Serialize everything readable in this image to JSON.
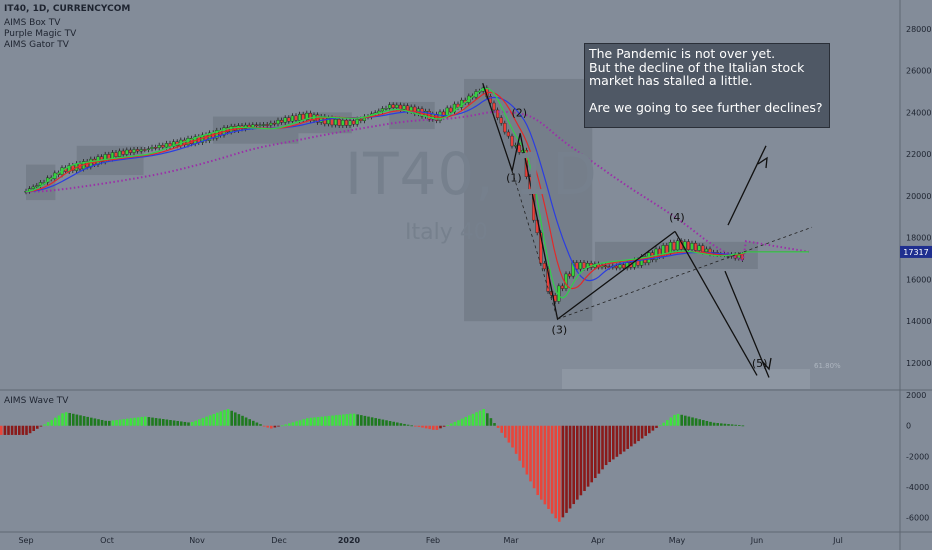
{
  "header": {
    "symbol_line": "IT40, 1D, CURRENCYCOM"
  },
  "indicators": [
    "AIMS Box TV",
    "Purple Magic TV",
    "AIMS Gator TV"
  ],
  "oscillator_title": "AIMS Wave TV",
  "watermark": {
    "symbol": "IT40, 1D",
    "name": "Italy 40"
  },
  "note": {
    "lines": [
      "The Pandemic is not over yet.",
      "But the decline of the Italian stock",
      "market has stalled a little.",
      "",
      "Are we going to see further declines?"
    ]
  },
  "price_tag": "17317",
  "fib_label": "61.80%",
  "colors": {
    "background": "#838c99",
    "up_candle": "#3ad13a",
    "down_candle": "#e8403a",
    "blue_ma": "#2b3de0",
    "red_ma": "#e02a2a",
    "green_ma": "#2fd04a",
    "purple": "#9b2fa8",
    "wave_light_green": "#3fe23f",
    "wave_dark_green": "#1f7a1f",
    "wave_red": "#e8453a",
    "wave_dark_red": "#8a1a1a"
  },
  "chart_data": {
    "type": "candlestick",
    "x_tick_labels": [
      "Sep",
      "Oct",
      "Nov",
      "Dec",
      "2020",
      "Feb",
      "Mar",
      "Apr",
      "May",
      "Jun",
      "Jul"
    ],
    "price_axis": {
      "ticks": [
        12000,
        14000,
        16000,
        18000,
        20000,
        22000,
        24000,
        26000,
        28000
      ],
      "range": [
        10800,
        29000
      ]
    },
    "oscillator_axis": {
      "ticks": [
        2000,
        0,
        -2000,
        -4000,
        -6000
      ],
      "range": [
        -6800,
        2200
      ]
    },
    "price_path": [
      {
        "date": "Sep 1",
        "close": 20200
      },
      {
        "date": "Sep 15",
        "close": 21500
      },
      {
        "date": "Oct 1",
        "close": 21800
      },
      {
        "date": "Oct 15",
        "close": 22000
      },
      {
        "date": "Nov 1",
        "close": 22800
      },
      {
        "date": "Nov 15",
        "close": 23300
      },
      {
        "date": "Dec 1",
        "close": 23200
      },
      {
        "date": "Dec 15",
        "close": 23800
      },
      {
        "date": "Jan 1",
        "close": 23700
      },
      {
        "date": "Jan 15",
        "close": 24200
      },
      {
        "date": "Feb 1",
        "close": 23600
      },
      {
        "date": "Feb 19",
        "close": 25400
      },
      {
        "date": "Mar 1",
        "close": 22500
      },
      {
        "date": "Mar 5",
        "close": 22000
      },
      {
        "date": "Mar 12",
        "close": 16500
      },
      {
        "date": "Mar 16",
        "close": 14600
      },
      {
        "date": "Mar 24",
        "close": 16500
      },
      {
        "date": "Apr 1",
        "close": 16800
      },
      {
        "date": "Apr 15",
        "close": 17000
      },
      {
        "date": "May 1",
        "close": 17400
      },
      {
        "date": "May 15",
        "close": 17100
      },
      {
        "date": "May 27",
        "close": 17317
      }
    ],
    "wave_labels": [
      {
        "label": "(1)",
        "date": "Mar 1",
        "price": 20700
      },
      {
        "label": "(2)",
        "date": "Mar 3",
        "price": 23800
      },
      {
        "label": "(3)",
        "date": "Mar 18",
        "price": 13400
      },
      {
        "label": "(4)",
        "date": "May 1",
        "price": 18800
      },
      {
        "label": "(5)",
        "date": "Jun 1",
        "price": 11800
      }
    ],
    "wave_oscillator": [
      {
        "date": "Sep 1",
        "value": -600
      },
      {
        "date": "Sep 15",
        "value": 900
      },
      {
        "date": "Oct 1",
        "value": 300
      },
      {
        "date": "Oct 15",
        "value": 600
      },
      {
        "date": "Nov 1",
        "value": 200
      },
      {
        "date": "Nov 15",
        "value": 1100
      },
      {
        "date": "Dec 1",
        "value": -200
      },
      {
        "date": "Dec 15",
        "value": 500
      },
      {
        "date": "Jan 1",
        "value": 800
      },
      {
        "date": "Jan 15",
        "value": 300
      },
      {
        "date": "Feb 1",
        "value": -300
      },
      {
        "date": "Feb 19",
        "value": 1100
      },
      {
        "date": "Mar 1",
        "value": -1500
      },
      {
        "date": "Mar 10",
        "value": -4500
      },
      {
        "date": "Mar 18",
        "value": -6300
      },
      {
        "date": "Mar 25",
        "value": -4800
      },
      {
        "date": "Apr 5",
        "value": -2500
      },
      {
        "date": "Apr 20",
        "value": -600
      },
      {
        "date": "May 1",
        "value": 800
      },
      {
        "date": "May 15",
        "value": 200
      },
      {
        "date": "May 27",
        "value": 0
      }
    ]
  }
}
